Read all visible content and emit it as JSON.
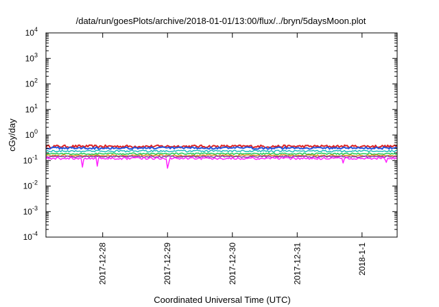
{
  "chart_data": {
    "type": "line",
    "title": "/data/run/goesPlots/archive/2018-01-01/13:00/flux/../bryn/5daysMoon.plot",
    "xlabel": "Coordinated Universal Time (UTC)",
    "ylabel": "cGy/day",
    "yscale": "log",
    "ylim": [
      0.0001,
      10000
    ],
    "y_ticks": [
      {
        "value": 0.0001,
        "base": "10",
        "exp": "-4"
      },
      {
        "value": 0.001,
        "base": "10",
        "exp": "-3"
      },
      {
        "value": 0.01,
        "base": "10",
        "exp": "-2"
      },
      {
        "value": 0.1,
        "base": "10",
        "exp": "-1"
      },
      {
        "value": 1,
        "base": "10",
        "exp": "0"
      },
      {
        "value": 10,
        "base": "10",
        "exp": "1"
      },
      {
        "value": 100,
        "base": "10",
        "exp": "2"
      },
      {
        "value": 1000,
        "base": "10",
        "exp": "3"
      },
      {
        "value": 10000,
        "base": "10",
        "exp": "4"
      }
    ],
    "xlim": [
      "2017-12-27T03:00",
      "2018-01-01T13:00"
    ],
    "x_ticks": [
      {
        "value": "2017-12-28T00:00",
        "label": "2017-12-28"
      },
      {
        "value": "2017-12-29T00:00",
        "label": "2017-12-29"
      },
      {
        "value": "2017-12-30T00:00",
        "label": "2017-12-30"
      },
      {
        "value": "2017-12-31T00:00",
        "label": "2017-12-31"
      },
      {
        "value": "2018-01-01T00:00",
        "label": "2018-1-1"
      }
    ],
    "grid": false,
    "legend": "none",
    "series": [
      {
        "color": "#dd2222",
        "level": 0.36,
        "amp": 0.12,
        "dips": []
      },
      {
        "color": "#2255dd",
        "level": 0.31,
        "amp": 0.1,
        "dips": []
      },
      {
        "color": "#22bbbb",
        "level": 0.235,
        "amp": 0.08,
        "dips": []
      },
      {
        "color": "#22cc55",
        "level": 0.185,
        "amp": 0.07,
        "dips": []
      },
      {
        "color": "#dd8822",
        "level": 0.158,
        "amp": 0.07,
        "dips": []
      },
      {
        "color": "#8833aa",
        "level": 0.142,
        "amp": 0.07,
        "dips": []
      },
      {
        "color": "#ff22ff",
        "level": 0.122,
        "amp": 0.1,
        "dips": [
          {
            "t": "2017-12-27T16:30",
            "value": 0.055
          },
          {
            "t": "2017-12-27T22:00",
            "value": 0.06
          },
          {
            "t": "2017-12-29T00:00",
            "value": 0.05
          },
          {
            "t": "2017-12-29T00:30",
            "value": 0.085
          },
          {
            "t": "2017-12-31T17:00",
            "value": 0.08
          },
          {
            "t": "2018-01-01T09:00",
            "value": 0.085
          }
        ]
      }
    ]
  }
}
